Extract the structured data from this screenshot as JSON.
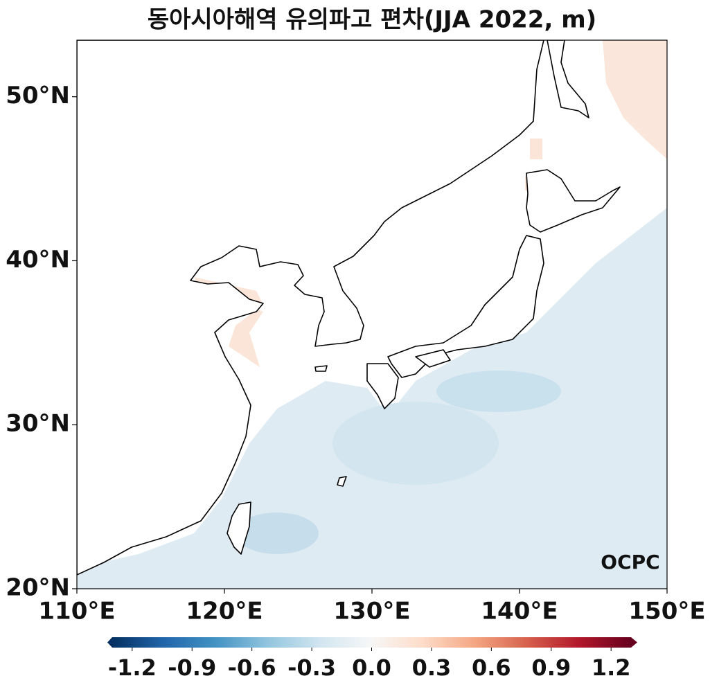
{
  "title": "동아시아해역 유의파고 편차(JJA 2022, m)",
  "map": {
    "lon_range": [
      110,
      150
    ],
    "lat_range": [
      20,
      53.45
    ],
    "lon_ticks": [
      {
        "value": 110,
        "label": "110°E"
      },
      {
        "value": 120,
        "label": "120°E"
      },
      {
        "value": 130,
        "label": "130°E"
      },
      {
        "value": 140,
        "label": "140°E"
      },
      {
        "value": 150,
        "label": "150°E"
      }
    ],
    "lat_ticks": [
      {
        "value": 20,
        "label": "20°N"
      },
      {
        "value": 30,
        "label": "30°N"
      },
      {
        "value": 40,
        "label": "40°N"
      },
      {
        "value": 50,
        "label": "50°N"
      }
    ],
    "logo": "OCPC"
  },
  "colorbar": {
    "range": [
      -1.3,
      1.3
    ],
    "ticks": [
      -1.2,
      -0.9,
      -0.6,
      -0.3,
      {
        "value": 0,
        "label": "0.0"
      },
      0.3,
      0.6,
      0.9,
      1.2
    ]
  }
}
